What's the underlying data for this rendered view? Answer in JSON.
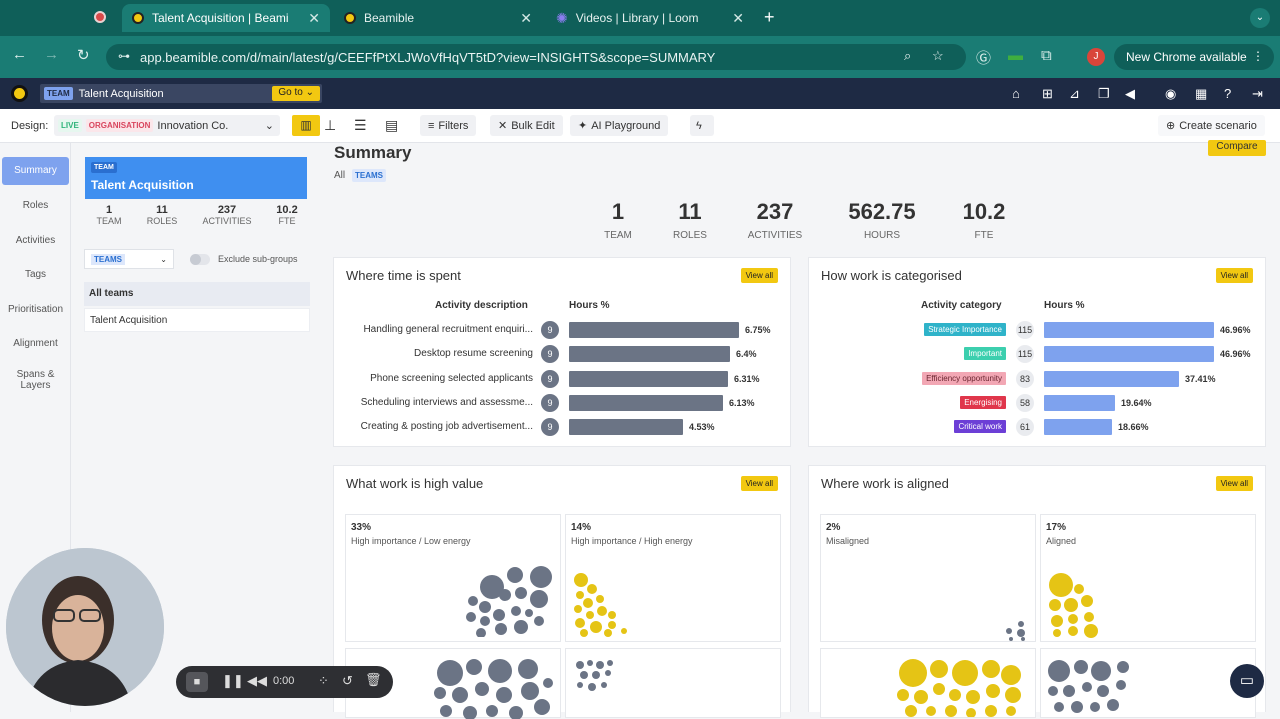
{
  "browser": {
    "tabs": [
      {
        "title": "Talent Acquisition | Beami",
        "active": true
      },
      {
        "title": "Beamible",
        "active": false
      },
      {
        "title": "Videos | Library | Loom",
        "active": false
      }
    ],
    "url": "app.beamible.com/d/main/latest/g/CEEFfPtXLJWoVfHqVT5tD?view=INSIGHTS&scope=SUMMARY",
    "new_chrome": "New Chrome available",
    "profile_initial": "J"
  },
  "app": {
    "team_tag": "TEAM",
    "team_name": "Talent Acquisition",
    "goto": "Go to"
  },
  "toolbar": {
    "design_label": "Design:",
    "live": "LIVE",
    "organisation": "ORGANISATION",
    "org_name": "Innovation Co.",
    "filters": "Filters",
    "bulk_edit": "Bulk Edit",
    "ai_playground": "AI Playground",
    "create_scenario": "Create scenario"
  },
  "sidebar": {
    "items": [
      "Summary",
      "Roles",
      "Activities",
      "Tags",
      "Prioritisation",
      "Alignment",
      "Spans &",
      "Layers"
    ]
  },
  "teamcard": {
    "tag": "TEAM",
    "name": "Talent Acquisition",
    "stats": [
      {
        "value": "1",
        "label": "TEAM"
      },
      {
        "value": "11",
        "label": "ROLES"
      },
      {
        "value": "237",
        "label": "ACTIVITIES"
      },
      {
        "value": "10.2",
        "label": "FTE"
      }
    ],
    "teams_select": "TEAMS",
    "exclude": "Exclude sub-groups",
    "list": [
      "All teams",
      "Talent Acquisition"
    ]
  },
  "summary": {
    "title": "Summary",
    "all": "All",
    "teams": "TEAMS",
    "compare": "Compare",
    "stats": [
      {
        "value": "1",
        "label": "TEAM"
      },
      {
        "value": "11",
        "label": "ROLES"
      },
      {
        "value": "237",
        "label": "ACTIVITIES"
      },
      {
        "value": "562.75",
        "label": "HOURS"
      },
      {
        "value": "10.2",
        "label": "FTE"
      }
    ]
  },
  "time_spent": {
    "title": "Where time is spent",
    "view_all": "View all",
    "col1": "Activity description",
    "col2": "Hours %",
    "rows": [
      {
        "label": "Handling general recruitment enquiri...",
        "count": "9",
        "value": 6.75,
        "display": "6.75%"
      },
      {
        "label": "Desktop resume screening",
        "count": "9",
        "value": 6.4,
        "display": "6.4%"
      },
      {
        "label": "Phone screening selected applicants",
        "count": "9",
        "value": 6.31,
        "display": "6.31%"
      },
      {
        "label": "Scheduling interviews and assessme...",
        "count": "9",
        "value": 6.13,
        "display": "6.13%"
      },
      {
        "label": "Creating & posting job advertisement...",
        "count": "9",
        "value": 4.53,
        "display": "4.53%"
      }
    ],
    "bar_color": "#6b7485"
  },
  "categorised": {
    "title": "How work is categorised",
    "view_all": "View all",
    "col1": "Activity category",
    "col2": "Hours %",
    "rows": [
      {
        "label": "Strategic Importance",
        "color": "#2fb3c9",
        "count": "115",
        "value": 46.96,
        "display": "46.96%"
      },
      {
        "label": "Important",
        "color": "#3ccfae",
        "count": "115",
        "value": 46.96,
        "display": "46.96%"
      },
      {
        "label": "Efficiency opportunity",
        "color": "#f2a7b4",
        "count": "83",
        "value": 37.41,
        "display": "37.41%"
      },
      {
        "label": "Energising",
        "color": "#e0364b",
        "count": "58",
        "value": 19.64,
        "display": "19.64%"
      },
      {
        "label": "Critical work",
        "color": "#6c3fd6",
        "count": "61",
        "value": 18.66,
        "display": "18.66%"
      }
    ],
    "bar_color": "#7ea2ee"
  },
  "high_value": {
    "title": "What work is high value",
    "view_all": "View all",
    "quads": [
      {
        "pct": "33%",
        "label": "High importance / Low energy"
      },
      {
        "pct": "14%",
        "label": "High importance / High energy"
      }
    ]
  },
  "aligned": {
    "title": "Where work is aligned",
    "view_all": "View all",
    "quads": [
      {
        "pct": "2%",
        "label": "Misaligned"
      },
      {
        "pct": "17%",
        "label": "Aligned"
      }
    ]
  },
  "loom": {
    "time": "0:00"
  }
}
